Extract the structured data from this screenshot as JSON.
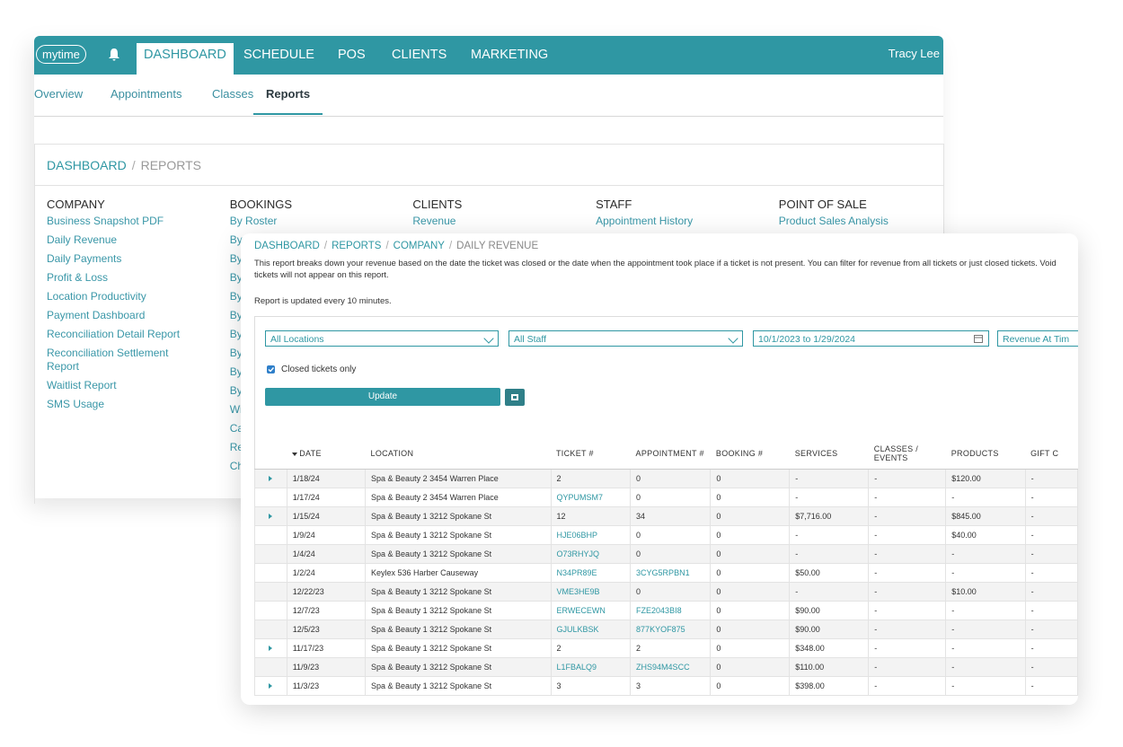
{
  "app": {
    "logo": "mytime",
    "nav": [
      "DASHBOARD",
      "SCHEDULE",
      "POS",
      "CLIENTS",
      "MARKETING"
    ],
    "active_nav": 0,
    "user": "Tracy Lee"
  },
  "subnav": {
    "items": [
      "Overview",
      "Appointments",
      "Classes",
      "Reports"
    ],
    "active": 3
  },
  "reports_page": {
    "breadcrumb": [
      "DASHBOARD",
      "REPORTS"
    ],
    "separator": "/",
    "columns": [
      {
        "heading": "COMPANY",
        "links": [
          "Business Snapshot PDF",
          "Daily Revenue",
          "Daily Payments",
          "Profit & Loss",
          "Location Productivity",
          "Payment Dashboard",
          "Reconciliation Detail Report",
          "Reconciliation Settlement Report",
          "Waitlist Report",
          "SMS Usage"
        ]
      },
      {
        "heading": "BOOKINGS",
        "links": [
          "By Roster",
          "By",
          "By",
          "By",
          "By",
          "By",
          "By",
          "By",
          "By",
          "By",
          "Wi",
          "Ca",
          "Re",
          "Ch"
        ]
      },
      {
        "heading": "CLIENTS",
        "links": [
          "Revenue"
        ]
      },
      {
        "heading": "STAFF",
        "links": [
          "Appointment History"
        ]
      },
      {
        "heading": "POINT OF SALE",
        "links": [
          "Product Sales Analysis"
        ]
      }
    ]
  },
  "daily_revenue": {
    "breadcrumb": [
      "DASHBOARD",
      "REPORTS",
      "COMPANY",
      "DAILY REVENUE"
    ],
    "description": "This report breaks down your revenue based on the date the ticket was closed or the date when the appointment took place if a ticket is not present. You can filter for revenue from all tickets or just closed tickets. Void tickets will not appear on this report.",
    "update_note": "Report is updated every 10 minutes.",
    "filters": {
      "location": "All Locations",
      "staff": "All Staff",
      "date_range": "10/1/2023 to 1/29/2024",
      "revenue_basis": "Revenue At Tim"
    },
    "closed_only": "Closed tickets only",
    "update_button": "Update",
    "table": {
      "headers": [
        "DATE",
        "LOCATION",
        "TICKET #",
        "APPOINTMENT #",
        "BOOKING #",
        "SERVICES",
        "CLASSES / EVENTS",
        "PRODUCTS",
        "GIFT C"
      ],
      "rows": [
        [
          "1/18/24",
          "Spa & Beauty 2 3454 Warren Place",
          "2",
          "0",
          "0",
          "-",
          "-",
          "$120.00",
          "-"
        ],
        [
          "1/17/24",
          "Spa & Beauty 2 3454 Warren Place",
          "QYPUMSM7",
          "0",
          "0",
          "-",
          "-",
          "-",
          "-"
        ],
        [
          "1/15/24",
          "Spa & Beauty 1 3212 Spokane St",
          "12",
          "34",
          "0",
          "$7,716.00",
          "-",
          "$845.00",
          "-"
        ],
        [
          "1/9/24",
          "Spa & Beauty 1 3212 Spokane St",
          "HJE06BHP",
          "0",
          "0",
          "-",
          "-",
          "$40.00",
          "-"
        ],
        [
          "1/4/24",
          "Spa & Beauty 1 3212 Spokane St",
          "O73RHYJQ",
          "0",
          "0",
          "-",
          "-",
          "-",
          "-"
        ],
        [
          "1/2/24",
          "Keylex 536 Harber Causeway",
          "N34PR89E",
          "3CYG5RPBN1",
          "0",
          "$50.00",
          "-",
          "-",
          "-"
        ],
        [
          "12/22/23",
          "Spa & Beauty 1 3212 Spokane St",
          "VME3HE9B",
          "0",
          "0",
          "-",
          "-",
          "$10.00",
          "-"
        ],
        [
          "12/7/23",
          "Spa & Beauty 1 3212 Spokane St",
          "ERWECEWN",
          "FZE2043BI8",
          "0",
          "$90.00",
          "-",
          "-",
          "-"
        ],
        [
          "12/5/23",
          "Spa & Beauty 1 3212 Spokane St",
          "GJULKBSK",
          "877KYOF875",
          "0",
          "$90.00",
          "-",
          "-",
          "-"
        ],
        [
          "11/17/23",
          "Spa & Beauty 1 3212 Spokane St",
          "2",
          "2",
          "0",
          "$348.00",
          "-",
          "-",
          "-"
        ],
        [
          "11/9/23",
          "Spa & Beauty 1 3212 Spokane St",
          "L1FBALQ9",
          "ZHS94M4SCC",
          "0",
          "$110.00",
          "-",
          "-",
          "-"
        ],
        [
          "11/3/23",
          "Spa & Beauty 1 3212 Spokane St",
          "3",
          "3",
          "0",
          "$398.00",
          "-",
          "-",
          "-"
        ]
      ]
    }
  }
}
